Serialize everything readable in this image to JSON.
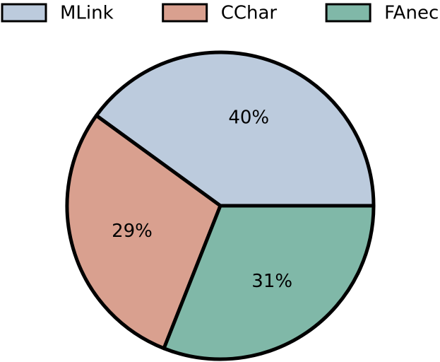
{
  "chart_data": {
    "type": "pie",
    "categories": [
      "MLink",
      "CChar",
      "FAnec"
    ],
    "values": [
      40,
      29,
      31
    ],
    "value_labels": [
      "40%",
      "29%",
      "31%"
    ],
    "colors": [
      "#bccbdd",
      "#d9a08f",
      "#80b8a8"
    ],
    "legend": "top"
  }
}
